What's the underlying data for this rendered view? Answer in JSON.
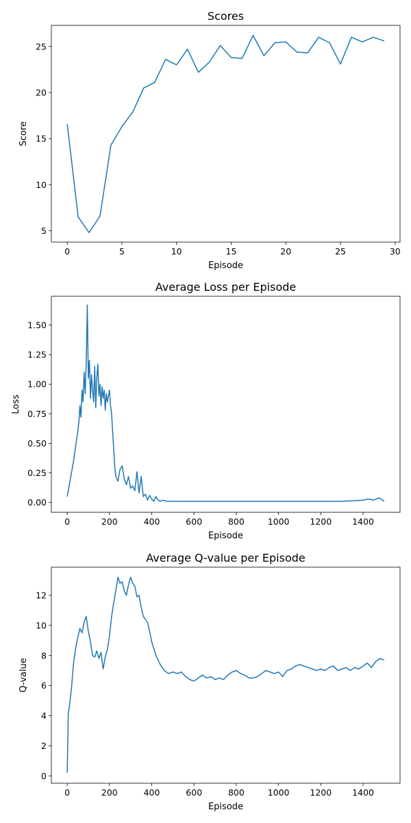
{
  "chart_data": [
    {
      "type": "line",
      "title": "Scores",
      "xlabel": "Episode",
      "ylabel": "Score",
      "xlim": [
        -1.45,
        30.45
      ],
      "ylim": [
        3.77,
        27.29
      ],
      "xticks": [
        0,
        5,
        10,
        15,
        20,
        25,
        30
      ],
      "yticks": [
        5,
        10,
        15,
        20,
        25
      ],
      "grid": false,
      "color": "#1f77b4",
      "x": [
        0,
        1,
        2,
        3,
        4,
        5,
        6,
        7,
        8,
        9,
        10,
        11,
        12,
        13,
        14,
        15,
        16,
        17,
        18,
        19,
        20,
        21,
        22,
        23,
        24,
        25,
        26,
        27,
        28,
        29
      ],
      "values": [
        16.6,
        6.5,
        4.8,
        6.6,
        14.3,
        16.3,
        17.9,
        20.5,
        21.1,
        23.6,
        23.0,
        24.7,
        22.2,
        23.3,
        25.1,
        23.8,
        23.7,
        26.2,
        24.0,
        25.4,
        25.5,
        24.4,
        24.3,
        26.0,
        25.4,
        23.1,
        26.0,
        25.5,
        26.0,
        25.6
      ]
    },
    {
      "type": "line",
      "title": "Average Loss per Episode",
      "xlabel": "Episode",
      "ylabel": "Loss",
      "xlim": [
        -75,
        1575
      ],
      "ylim": [
        -0.083,
        1.743
      ],
      "xticks": [
        0,
        200,
        400,
        600,
        800,
        1000,
        1200,
        1400
      ],
      "yticks": [
        0.0,
        0.25,
        0.5,
        0.75,
        1.0,
        1.25,
        1.5
      ],
      "ytick_labels": [
        "0.00",
        "0.25",
        "0.50",
        "0.75",
        "1.00",
        "1.25",
        "1.50"
      ],
      "grid": false,
      "color": "#1f77b4",
      "x": [
        0,
        10,
        20,
        30,
        40,
        50,
        55,
        60,
        65,
        70,
        75,
        80,
        85,
        90,
        95,
        100,
        105,
        110,
        115,
        120,
        125,
        130,
        135,
        140,
        145,
        150,
        155,
        160,
        165,
        170,
        175,
        180,
        185,
        190,
        195,
        200,
        205,
        210,
        215,
        220,
        225,
        230,
        240,
        250,
        260,
        270,
        280,
        290,
        300,
        310,
        320,
        330,
        340,
        350,
        360,
        370,
        380,
        390,
        400,
        410,
        420,
        430,
        440,
        450,
        475,
        500,
        550,
        600,
        700,
        800,
        900,
        1000,
        1100,
        1200,
        1300,
        1400,
        1425,
        1450,
        1475,
        1500
      ],
      "values": [
        0.05,
        0.15,
        0.25,
        0.35,
        0.48,
        0.6,
        0.68,
        0.82,
        0.72,
        0.95,
        0.85,
        1.1,
        0.92,
        1.18,
        1.67,
        1.05,
        1.2,
        0.88,
        1.08,
        0.95,
        0.85,
        1.15,
        0.8,
        1.05,
        1.17,
        0.9,
        1.0,
        0.82,
        0.98,
        0.88,
        0.95,
        0.78,
        0.92,
        0.85,
        0.9,
        0.95,
        0.82,
        0.75,
        0.6,
        0.45,
        0.3,
        0.22,
        0.18,
        0.28,
        0.31,
        0.2,
        0.15,
        0.22,
        0.12,
        0.14,
        0.1,
        0.26,
        0.08,
        0.22,
        0.05,
        0.07,
        0.02,
        0.06,
        0.03,
        0.01,
        0.05,
        0.02,
        0.01,
        0.02,
        0.01,
        0.01,
        0.01,
        0.01,
        0.01,
        0.01,
        0.01,
        0.01,
        0.01,
        0.01,
        0.01,
        0.02,
        0.03,
        0.02,
        0.04,
        0.01
      ]
    },
    {
      "type": "line",
      "title": "Average Q-value per Episode",
      "xlabel": "Episode",
      "ylabel": "Q-value",
      "xlim": [
        -75,
        1575
      ],
      "ylim": [
        -0.49,
        13.87
      ],
      "xticks": [
        0,
        200,
        400,
        600,
        800,
        1000,
        1200,
        1400
      ],
      "yticks": [
        0,
        2,
        4,
        6,
        8,
        10,
        12
      ],
      "grid": false,
      "color": "#1f77b4",
      "x": [
        0,
        5,
        10,
        20,
        30,
        40,
        50,
        60,
        70,
        80,
        90,
        100,
        110,
        120,
        130,
        140,
        150,
        160,
        170,
        180,
        190,
        200,
        210,
        220,
        230,
        240,
        250,
        260,
        270,
        280,
        290,
        300,
        310,
        320,
        330,
        340,
        350,
        360,
        370,
        380,
        390,
        400,
        420,
        440,
        460,
        480,
        500,
        520,
        540,
        560,
        580,
        600,
        620,
        640,
        660,
        680,
        700,
        720,
        740,
        760,
        780,
        800,
        820,
        840,
        860,
        880,
        900,
        920,
        940,
        960,
        980,
        1000,
        1020,
        1040,
        1060,
        1080,
        1100,
        1120,
        1140,
        1160,
        1180,
        1200,
        1220,
        1240,
        1260,
        1280,
        1300,
        1320,
        1340,
        1360,
        1380,
        1400,
        1420,
        1440,
        1460,
        1480,
        1500
      ],
      "values": [
        0.2,
        4.2,
        4.6,
        5.8,
        7.5,
        8.5,
        9.2,
        9.8,
        9.5,
        10.2,
        10.6,
        9.6,
        8.9,
        8.0,
        7.9,
        8.3,
        7.8,
        8.2,
        7.1,
        7.9,
        8.4,
        9.3,
        10.6,
        11.5,
        12.3,
        13.2,
        12.8,
        12.9,
        12.3,
        12.0,
        12.7,
        13.2,
        12.8,
        12.6,
        11.9,
        12.0,
        11.2,
        10.6,
        10.4,
        10.2,
        9.6,
        8.9,
        8.0,
        7.4,
        7.0,
        6.8,
        6.9,
        6.8,
        6.9,
        6.6,
        6.4,
        6.3,
        6.5,
        6.7,
        6.5,
        6.6,
        6.4,
        6.5,
        6.4,
        6.7,
        6.9,
        7.0,
        6.8,
        6.7,
        6.5,
        6.5,
        6.6,
        6.8,
        7.0,
        6.9,
        6.8,
        6.9,
        6.6,
        7.0,
        7.1,
        7.3,
        7.4,
        7.3,
        7.2,
        7.1,
        7.0,
        7.1,
        7.0,
        7.2,
        7.3,
        7.0,
        7.1,
        7.2,
        7.0,
        7.2,
        7.1,
        7.3,
        7.5,
        7.2,
        7.6,
        7.8,
        7.7
      ]
    }
  ]
}
